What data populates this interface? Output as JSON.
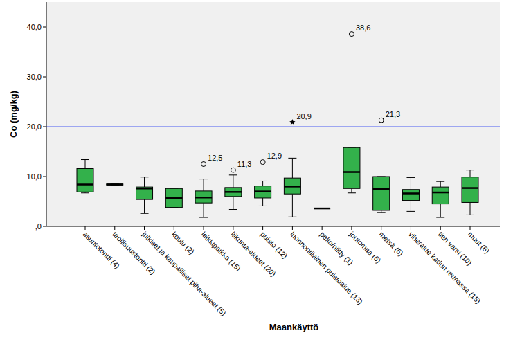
{
  "chart_data": {
    "type": "box",
    "x_label": "Maankäyttö",
    "y_label": "Co (mg/kg)",
    "categories": [
      "asuntotontti (4)",
      "teollisuustontti (2)",
      "julkiset ja kaupalliset piha-alueet (5)",
      "koulu (2)",
      "leikkipaikka (15)",
      "liikunta-alueet (20)",
      "puisto (12)",
      "luonnontilainen puistoalue (13)",
      "pelto/niitty (1)",
      "joutomaa (6)",
      "metsä (6)",
      "viheralue kadun reunassa (15)",
      "tien varsi (10)",
      "muut (6)"
    ],
    "boxes": [
      {
        "min": 6.7,
        "q1": 6.9,
        "median": 8.4,
        "q3": 11.6,
        "max": 13.4
      },
      {
        "min": 8.3,
        "q1": 8.3,
        "median": 8.4,
        "q3": 8.5,
        "max": 8.5
      },
      {
        "min": 2.6,
        "q1": 5.4,
        "median": 7.6,
        "q3": 7.9,
        "max": 9.9
      },
      {
        "min": 3.8,
        "q1": 3.8,
        "median": 5.7,
        "q3": 7.6,
        "max": 7.6
      },
      {
        "min": 1.8,
        "q1": 4.7,
        "median": 5.8,
        "q3": 7.1,
        "max": 9.5
      },
      {
        "min": 3.4,
        "q1": 6.0,
        "median": 6.9,
        "q3": 7.8,
        "max": 10.3
      },
      {
        "min": 4.1,
        "q1": 5.7,
        "median": 7.0,
        "q3": 8.1,
        "max": 9.1
      },
      {
        "min": 1.9,
        "q1": 6.5,
        "median": 8.0,
        "q3": 9.7,
        "max": 13.7
      },
      {
        "min": 3.6,
        "q1": 3.6,
        "median": 3.6,
        "q3": 3.6,
        "max": 3.6
      },
      {
        "min": 6.7,
        "q1": 7.6,
        "median": 10.9,
        "q3": 15.8,
        "max": 15.8
      },
      {
        "min": 2.8,
        "q1": 3.2,
        "median": 7.5,
        "q3": 10.0,
        "max": 10.0
      },
      {
        "min": 3.0,
        "q1": 5.2,
        "median": 6.6,
        "q3": 7.4,
        "max": 9.8
      },
      {
        "min": 1.8,
        "q1": 4.5,
        "median": 6.8,
        "q3": 7.9,
        "max": 9.0
      },
      {
        "min": 2.3,
        "q1": 4.8,
        "median": 7.7,
        "q3": 9.9,
        "max": 11.3
      }
    ],
    "outliers": [
      [],
      [],
      [],
      [],
      [
        {
          "value": 12.5,
          "label": "12,5"
        }
      ],
      [
        {
          "value": 11.3,
          "label": "11,3"
        }
      ],
      [
        {
          "value": 12.9,
          "label": "12,9"
        }
      ],
      [],
      [],
      [
        {
          "value": 38.6,
          "label": "38,6"
        }
      ],
      [
        {
          "value": 21.3,
          "label": "21,3"
        }
      ],
      [],
      [],
      []
    ],
    "extremes": [
      [],
      [],
      [],
      [],
      [],
      [],
      [],
      [
        {
          "value": 20.9,
          "label": "20,9"
        }
      ],
      [],
      [],
      [],
      [],
      [],
      []
    ],
    "reference_lines": [
      {
        "value": 20,
        "color": "#4b5cf2"
      }
    ],
    "color": "#33b14b",
    "ylim": [
      0,
      45
    ],
    "yticks": [
      {
        "value": 0,
        "label": ",0"
      },
      {
        "value": 10,
        "label": "10,0"
      },
      {
        "value": 20,
        "label": "20,0"
      },
      {
        "value": 30,
        "label": "30,0"
      },
      {
        "value": 40,
        "label": "40,0"
      }
    ],
    "grid": false
  }
}
